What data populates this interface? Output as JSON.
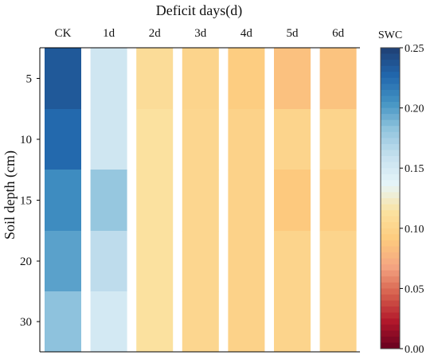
{
  "chart_data": {
    "type": "heatmap",
    "title": "Deficit days(d)",
    "xlabel": "",
    "ylabel": "Soil depth (cm)",
    "categories": [
      "CK",
      "1d",
      "2d",
      "3d",
      "4d",
      "5d",
      "6d"
    ],
    "depths": [
      "5",
      "10",
      "15",
      "20",
      "30"
    ],
    "values": [
      [
        0.235,
        0.153,
        0.108,
        0.1,
        0.093,
        0.085,
        0.086
      ],
      [
        0.226,
        0.153,
        0.113,
        0.102,
        0.098,
        0.1,
        0.1
      ],
      [
        0.208,
        0.18,
        0.113,
        0.102,
        0.098,
        0.09,
        0.093
      ],
      [
        0.198,
        0.163,
        0.113,
        0.102,
        0.098,
        0.1,
        0.1
      ],
      [
        0.183,
        0.15,
        0.113,
        0.102,
        0.098,
        0.1,
        0.1
      ]
    ],
    "colorbar": {
      "label": "SWC",
      "range": [
        0.0,
        0.25
      ],
      "ticks": [
        "0.25",
        "0.20",
        "0.15",
        "0.10",
        "0.05",
        "0.00"
      ],
      "colors": [
        "#67001f",
        "#b2182b",
        "#d6604d",
        "#f4a582",
        "#fdcb7e",
        "#fbe2a0",
        "#e6f5f8",
        "#c7e1ef",
        "#92c5de",
        "#4393c3",
        "#2166ac",
        "#1f3f73"
      ]
    }
  }
}
